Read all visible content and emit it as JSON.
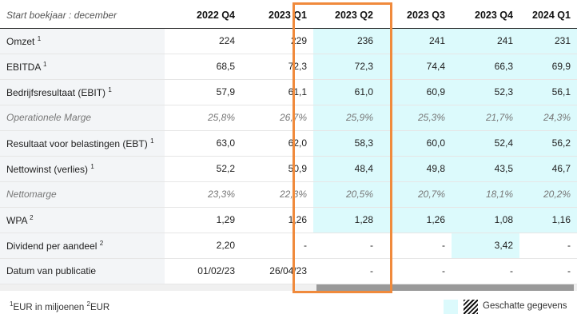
{
  "table": {
    "header_label": "Start boekjaar : december",
    "columns": [
      "2022 Q4",
      "2023 Q1",
      "2023 Q2",
      "2023 Q3",
      "2023 Q4",
      "2024 Q1"
    ],
    "rows": [
      {
        "label": "Omzet",
        "sup": "1",
        "values": [
          "224",
          "229",
          "236",
          "241",
          "241",
          "231"
        ]
      },
      {
        "label": "EBITDA",
        "sup": "1",
        "values": [
          "68,5",
          "72,3",
          "72,3",
          "74,4",
          "66,3",
          "69,9"
        ]
      },
      {
        "label": "Bedrijfsresultaat (EBIT)",
        "sup": "1",
        "values": [
          "57,9",
          "61,1",
          "61,0",
          "60,9",
          "52,3",
          "56,1"
        ]
      },
      {
        "label": "Operationele Marge",
        "sup": "",
        "values": [
          "25,8%",
          "26,7%",
          "25,9%",
          "25,3%",
          "21,7%",
          "24,3%"
        ]
      },
      {
        "label": "Resultaat voor belastingen (EBT)",
        "sup": "1",
        "values": [
          "63,0",
          "62,0",
          "58,3",
          "60,0",
          "52,4",
          "56,2"
        ]
      },
      {
        "label": "Nettowinst (verlies)",
        "sup": "1",
        "values": [
          "52,2",
          "50,9",
          "48,4",
          "49,8",
          "43,5",
          "46,7"
        ]
      },
      {
        "label": "Nettomarge",
        "sup": "",
        "values": [
          "23,3%",
          "22,3%",
          "20,5%",
          "20,7%",
          "18,1%",
          "20,2%"
        ]
      },
      {
        "label": "WPA",
        "sup": "2",
        "values": [
          "1,29",
          "1,26",
          "1,28",
          "1,26",
          "1,08",
          "1,16"
        ]
      },
      {
        "label": "Dividend per aandeel",
        "sup": "2",
        "values": [
          "2,20",
          "-",
          "-",
          "-",
          "3,42",
          "-"
        ]
      },
      {
        "label": "Datum van publicatie",
        "sup": "",
        "values": [
          "01/02/23",
          "26/04/23",
          "-",
          "-",
          "-",
          "-"
        ]
      }
    ]
  },
  "footer": {
    "footnote_sup1": "1",
    "footnote_text1": "EUR in miljoenen ",
    "footnote_sup2": "2",
    "footnote_text2": "EUR",
    "legend_label": "Geschatte gegevens"
  },
  "colors": {
    "estimate_bg": "#dcfafc",
    "highlight_border": "#f08a3c",
    "label_bg": "#f3f5f7"
  }
}
